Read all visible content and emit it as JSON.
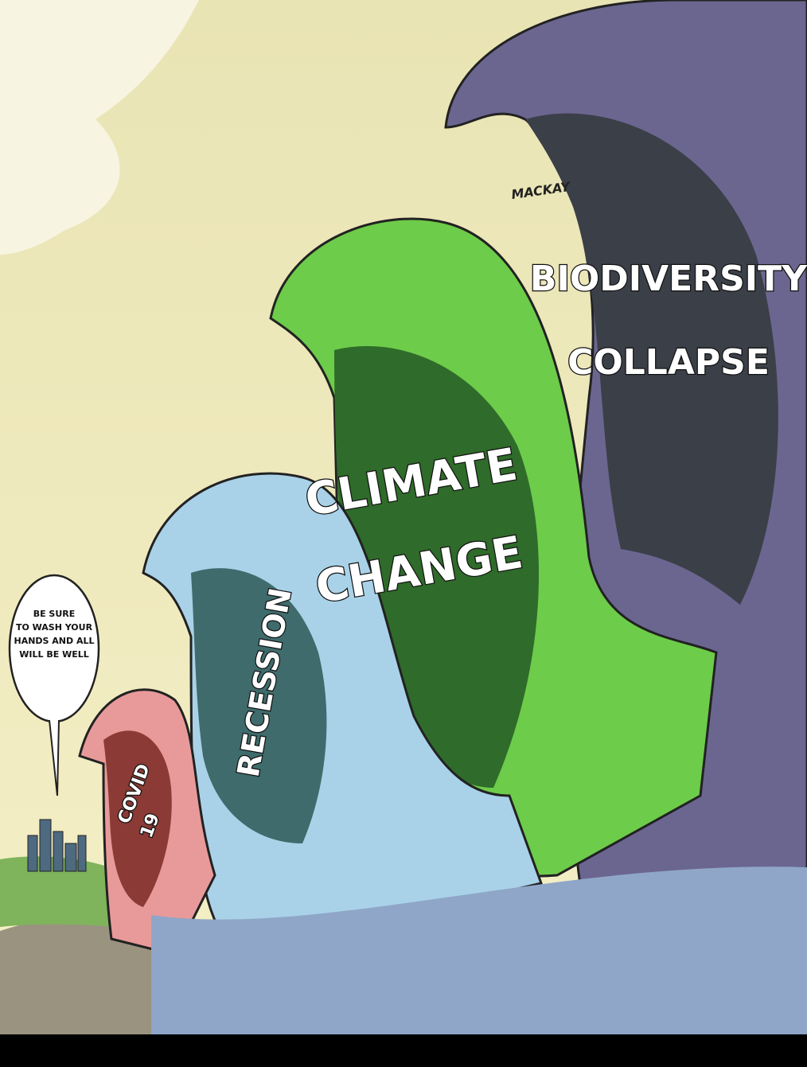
{
  "speech_bubble": {
    "lines": [
      "BE SURE",
      "TO WASH YOUR",
      "HANDS AND ALL",
      "WILL BE WELL"
    ]
  },
  "waves": [
    {
      "label": [
        "COVID",
        "19"
      ]
    },
    {
      "label": [
        "RECESSION"
      ]
    },
    {
      "label": [
        "CLIMATE",
        "CHANGE"
      ]
    },
    {
      "label": [
        "BIODIVERSITY",
        "COLLAPSE"
      ]
    }
  ],
  "signature": "MACKAY"
}
